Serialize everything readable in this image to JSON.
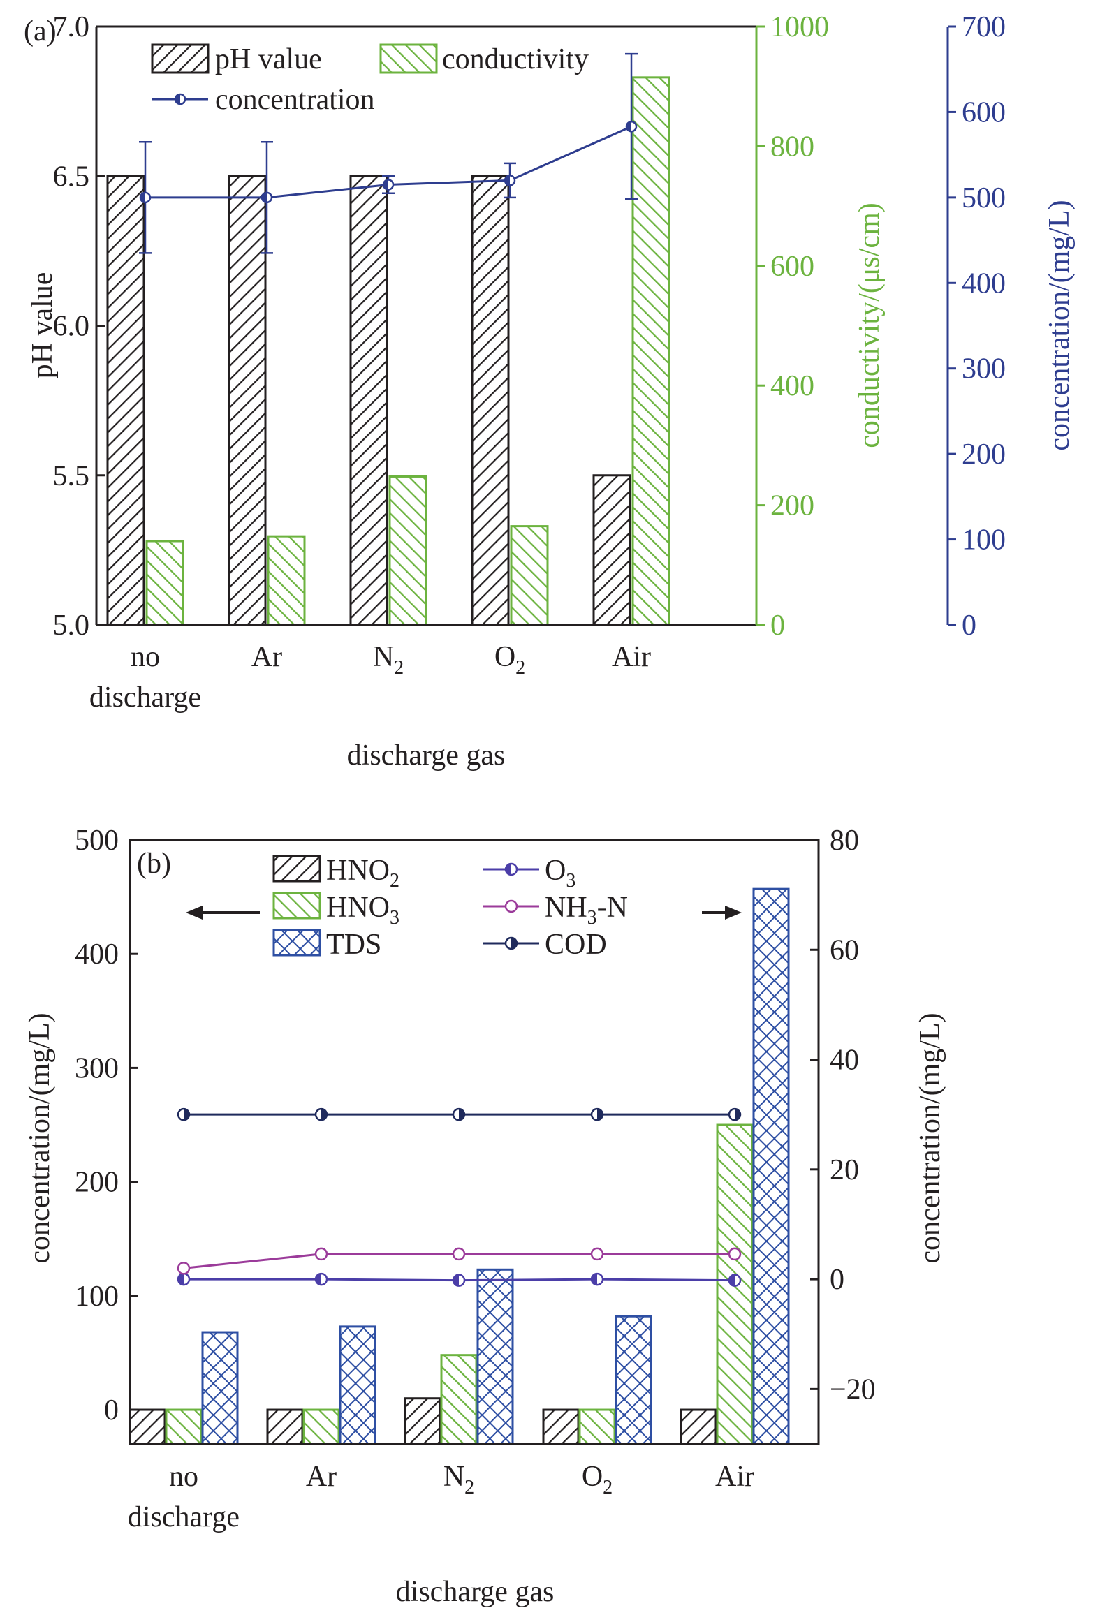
{
  "chart_data": [
    {
      "panel_label": "(a)",
      "type": "bar",
      "categories": [
        [
          "no",
          "discharge"
        ],
        [
          "Ar"
        ],
        [
          "N",
          "2"
        ],
        [
          "O",
          "2"
        ],
        [
          "Air"
        ]
      ],
      "xlabel": "discharge gas",
      "axes": {
        "left": {
          "label": "pH value",
          "ylim": [
            5.0,
            7.0
          ],
          "ticks": [
            "5.0",
            "5.5",
            "6.0",
            "6.5",
            "7.0"
          ],
          "color": "#231f20"
        },
        "right1": {
          "label": "conductivity/(μs/cm)",
          "ylim": [
            0,
            1000
          ],
          "ticks": [
            "0",
            "200",
            "400",
            "600",
            "800",
            "1000"
          ],
          "color": "#6cb33f"
        },
        "right2": {
          "label": "concentration/(mg/L)",
          "ylim": [
            0,
            700
          ],
          "ticks": [
            "0",
            "100",
            "200",
            "300",
            "400",
            "500",
            "600",
            "700"
          ],
          "color": "#2e3d8f"
        }
      },
      "series": [
        {
          "name": "pH value",
          "kind": "bar",
          "axis": "left",
          "values": [
            6.5,
            6.5,
            6.5,
            6.5,
            5.5
          ],
          "color": "#231f20"
        },
        {
          "name": "conductivity",
          "kind": "bar",
          "axis": "right1",
          "values": [
            140,
            148,
            248,
            165,
            915
          ],
          "color": "#6cb33f"
        },
        {
          "name": "concentration",
          "kind": "line",
          "axis": "right2",
          "values": [
            500,
            500,
            515,
            520,
            583
          ],
          "errors": [
            65,
            65,
            10,
            20,
            85
          ],
          "color": "#2e3d8f"
        }
      ],
      "legend": {
        "placement": "top-left",
        "items": [
          "pH value",
          "conductivity",
          "concentration"
        ]
      }
    },
    {
      "panel_label": "(b)",
      "type": "bar",
      "categories": [
        [
          "no",
          "discharge"
        ],
        [
          "Ar"
        ],
        [
          "N",
          "2"
        ],
        [
          "O",
          "2"
        ],
        [
          "Air"
        ]
      ],
      "xlabel": "discharge gas",
      "axes": {
        "left": {
          "label": "concentration/(mg/L)",
          "ylim": [
            -30,
            500
          ],
          "ticks": [
            "0",
            "100",
            "200",
            "300",
            "400",
            "500"
          ],
          "tick_values": [
            0,
            100,
            200,
            300,
            400,
            500
          ],
          "color": "#231f20"
        },
        "right": {
          "label": "concentration/(mg/L)",
          "ylim": [
            -30,
            80
          ],
          "ticks": [
            "−20",
            "0",
            "20",
            "40",
            "60",
            "80"
          ],
          "tick_values": [
            -20,
            0,
            20,
            40,
            60,
            80
          ],
          "color": "#231f20"
        }
      },
      "series": [
        {
          "name": "HNO2",
          "label_parts": [
            "HNO",
            "2"
          ],
          "kind": "bar",
          "axis": "left",
          "values": [
            0,
            0,
            10,
            0,
            0
          ],
          "color": "#231f20",
          "pattern": "hatch-right"
        },
        {
          "name": "HNO3",
          "label_parts": [
            "HNO",
            "3"
          ],
          "kind": "bar",
          "axis": "left",
          "values": [
            0,
            0,
            48,
            0,
            250
          ],
          "color": "#6cb33f",
          "pattern": "hatch-left"
        },
        {
          "name": "TDS",
          "label_parts": [
            "TDS",
            ""
          ],
          "kind": "bar",
          "axis": "left",
          "values": [
            68,
            73,
            123,
            82,
            457
          ],
          "color": "#2e4fa3",
          "pattern": "crosshatch"
        },
        {
          "name": "O3",
          "label_parts": [
            "O",
            "3"
          ],
          "kind": "line",
          "axis": "right",
          "values": [
            0,
            0,
            -0.2,
            0,
            -0.2
          ],
          "color": "#4b3ea8",
          "marker": "half-left"
        },
        {
          "name": "NH3-N",
          "label_parts": [
            "NH",
            "3",
            "-N"
          ],
          "kind": "line",
          "axis": "right",
          "values": [
            2,
            4.6,
            4.6,
            4.6,
            4.6
          ],
          "color": "#9b3b9a",
          "marker": "circle"
        },
        {
          "name": "COD",
          "label_parts": [
            "COD",
            ""
          ],
          "kind": "line",
          "axis": "right",
          "values": [
            30,
            30,
            30,
            30,
            30
          ],
          "color": "#1f2a5c",
          "marker": "half-right"
        }
      ],
      "legend": {
        "placement": "top",
        "items": [
          "HNO2",
          "HNO3",
          "TDS",
          "O3",
          "NH3-N",
          "COD"
        ]
      },
      "annotations": [
        "arrow pointing to left axis (bars)",
        "arrow pointing to right axis (lines)"
      ]
    }
  ]
}
